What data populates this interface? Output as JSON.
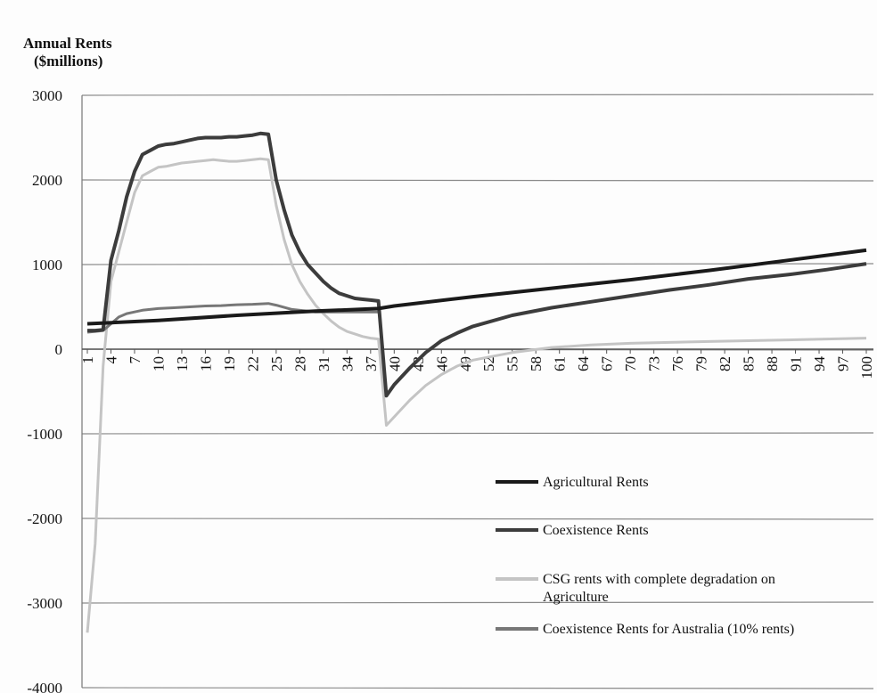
{
  "chart_data": {
    "type": "line",
    "ylabel_line1": "Annual Rents",
    "ylabel_line2": "($millions)",
    "xlabel": "",
    "ylim": [
      -4000,
      3000
    ],
    "y_ticks": [
      3000,
      2000,
      1000,
      0,
      -1000,
      -2000,
      -3000,
      -4000
    ],
    "y_tick_labels": [
      "3000",
      "2000",
      "1000",
      "0",
      "-1000",
      "-2000",
      "-3000",
      "-4000"
    ],
    "x_tick_labels": [
      "1",
      "4",
      "7",
      "10",
      "13",
      "16",
      "19",
      "22",
      "25",
      "28",
      "31",
      "34",
      "37",
      "40",
      "43",
      "46",
      "49",
      "52",
      "55",
      "58",
      "61",
      "64",
      "67",
      "70",
      "73",
      "76",
      "79",
      "82",
      "85",
      "88",
      "91",
      "94",
      "97",
      "100"
    ],
    "grid": true,
    "legend_position": "center-right",
    "series": [
      {
        "name": "Agricultural Rents",
        "color": "#1a1a1a",
        "points": [
          [
            1,
            300
          ],
          [
            10,
            340
          ],
          [
            20,
            400
          ],
          [
            30,
            450
          ],
          [
            38,
            480
          ],
          [
            40,
            510
          ],
          [
            50,
            620
          ],
          [
            60,
            720
          ],
          [
            70,
            820
          ],
          [
            80,
            930
          ],
          [
            90,
            1050
          ],
          [
            100,
            1170
          ]
        ]
      },
      {
        "name": "Coexistence Rents",
        "color": "#3c3c3c",
        "points": [
          [
            1,
            220
          ],
          [
            2,
            220
          ],
          [
            3,
            230
          ],
          [
            4,
            1050
          ],
          [
            5,
            1400
          ],
          [
            6,
            1800
          ],
          [
            7,
            2100
          ],
          [
            8,
            2300
          ],
          [
            9,
            2350
          ],
          [
            10,
            2400
          ],
          [
            11,
            2420
          ],
          [
            12,
            2430
          ],
          [
            13,
            2450
          ],
          [
            14,
            2470
          ],
          [
            15,
            2490
          ],
          [
            16,
            2500
          ],
          [
            17,
            2500
          ],
          [
            18,
            2500
          ],
          [
            19,
            2510
          ],
          [
            20,
            2510
          ],
          [
            21,
            2520
          ],
          [
            22,
            2530
          ],
          [
            23,
            2550
          ],
          [
            24,
            2540
          ],
          [
            25,
            2000
          ],
          [
            26,
            1650
          ],
          [
            27,
            1350
          ],
          [
            28,
            1150
          ],
          [
            29,
            1000
          ],
          [
            30,
            900
          ],
          [
            31,
            800
          ],
          [
            32,
            720
          ],
          [
            33,
            660
          ],
          [
            34,
            630
          ],
          [
            35,
            600
          ],
          [
            36,
            590
          ],
          [
            37,
            580
          ],
          [
            38,
            570
          ],
          [
            39,
            -550
          ],
          [
            40,
            -420
          ],
          [
            42,
            -220
          ],
          [
            44,
            -40
          ],
          [
            46,
            100
          ],
          [
            48,
            190
          ],
          [
            50,
            270
          ],
          [
            55,
            400
          ],
          [
            60,
            490
          ],
          [
            65,
            560
          ],
          [
            70,
            630
          ],
          [
            75,
            700
          ],
          [
            80,
            760
          ],
          [
            85,
            830
          ],
          [
            90,
            880
          ],
          [
            95,
            940
          ],
          [
            100,
            1010
          ]
        ]
      },
      {
        "name": "CSG rents with complete degradation on Agriculture",
        "color": "#c4c4c4",
        "points": [
          [
            1,
            -3350
          ],
          [
            2,
            -2300
          ],
          [
            3,
            -200
          ],
          [
            4,
            800
          ],
          [
            5,
            1150
          ],
          [
            6,
            1500
          ],
          [
            7,
            1850
          ],
          [
            8,
            2050
          ],
          [
            9,
            2100
          ],
          [
            10,
            2150
          ],
          [
            11,
            2160
          ],
          [
            12,
            2180
          ],
          [
            13,
            2200
          ],
          [
            14,
            2210
          ],
          [
            15,
            2220
          ],
          [
            16,
            2230
          ],
          [
            17,
            2240
          ],
          [
            18,
            2230
          ],
          [
            19,
            2220
          ],
          [
            20,
            2220
          ],
          [
            21,
            2230
          ],
          [
            22,
            2240
          ],
          [
            23,
            2250
          ],
          [
            24,
            2240
          ],
          [
            25,
            1700
          ],
          [
            26,
            1300
          ],
          [
            27,
            1000
          ],
          [
            28,
            800
          ],
          [
            29,
            650
          ],
          [
            30,
            520
          ],
          [
            31,
            420
          ],
          [
            32,
            330
          ],
          [
            33,
            260
          ],
          [
            34,
            210
          ],
          [
            35,
            180
          ],
          [
            36,
            150
          ],
          [
            37,
            130
          ],
          [
            38,
            120
          ],
          [
            39,
            -900
          ],
          [
            40,
            -800
          ],
          [
            42,
            -600
          ],
          [
            44,
            -430
          ],
          [
            46,
            -300
          ],
          [
            48,
            -200
          ],
          [
            50,
            -130
          ],
          [
            55,
            -40
          ],
          [
            60,
            20
          ],
          [
            65,
            50
          ],
          [
            70,
            70
          ],
          [
            75,
            80
          ],
          [
            80,
            90
          ],
          [
            85,
            100
          ],
          [
            90,
            110
          ],
          [
            95,
            120
          ],
          [
            100,
            130
          ]
        ]
      },
      {
        "name": "Coexistence Rents for Australia (10% rents)",
        "color": "#777777",
        "points": [
          [
            1,
            200
          ],
          [
            2,
            210
          ],
          [
            3,
            220
          ],
          [
            4,
            300
          ],
          [
            5,
            380
          ],
          [
            6,
            420
          ],
          [
            7,
            440
          ],
          [
            8,
            460
          ],
          [
            10,
            480
          ],
          [
            12,
            490
          ],
          [
            14,
            500
          ],
          [
            16,
            510
          ],
          [
            18,
            515
          ],
          [
            20,
            525
          ],
          [
            22,
            530
          ],
          [
            24,
            540
          ],
          [
            25,
            520
          ],
          [
            27,
            470
          ],
          [
            30,
            440
          ],
          [
            33,
            440
          ],
          [
            36,
            440
          ],
          [
            38,
            440
          ]
        ]
      }
    ]
  }
}
